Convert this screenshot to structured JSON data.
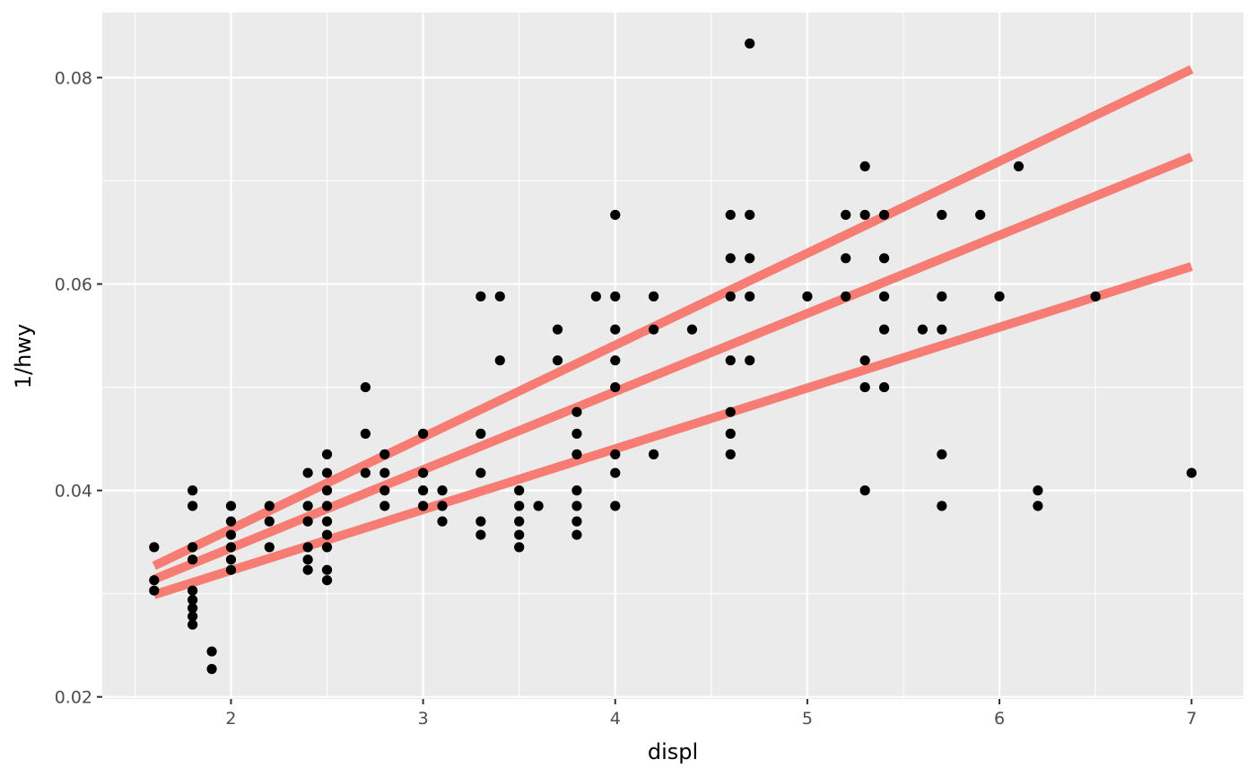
{
  "chart_data": {
    "type": "scatter",
    "title": "",
    "xlabel": "displ",
    "ylabel": "1/hwy",
    "xlim": [
      1.33,
      7.27
    ],
    "ylim": [
      0.0198,
      0.0863
    ],
    "x_ticks": [
      2,
      3,
      4,
      5,
      6,
      7
    ],
    "y_ticks": [
      0.02,
      0.04,
      0.06,
      0.08
    ],
    "x_tick_labels": [
      "2",
      "3",
      "4",
      "5",
      "6",
      "7"
    ],
    "y_tick_labels": [
      "0.02",
      "0.04",
      "0.06",
      "0.08"
    ],
    "grid": true,
    "legend": "none",
    "colors": {
      "panel": "#ebebeb",
      "grid": "#ffffff",
      "points": "#000000",
      "quantile_lines": "#f8766d"
    },
    "points": [
      [
        1.6,
        0.0345
      ],
      [
        1.6,
        0.0313
      ],
      [
        1.6,
        0.0303
      ],
      [
        1.8,
        0.04
      ],
      [
        1.8,
        0.0385
      ],
      [
        1.8,
        0.0345
      ],
      [
        1.8,
        0.0333
      ],
      [
        1.8,
        0.0303
      ],
      [
        1.8,
        0.0294
      ],
      [
        1.8,
        0.0286
      ],
      [
        1.8,
        0.0278
      ],
      [
        1.8,
        0.027
      ],
      [
        1.9,
        0.0244
      ],
      [
        1.9,
        0.0227
      ],
      [
        2.0,
        0.0385
      ],
      [
        2.0,
        0.037
      ],
      [
        2.0,
        0.0357
      ],
      [
        2.0,
        0.0345
      ],
      [
        2.0,
        0.0333
      ],
      [
        2.0,
        0.0323
      ],
      [
        2.2,
        0.0385
      ],
      [
        2.2,
        0.037
      ],
      [
        2.2,
        0.0345
      ],
      [
        2.4,
        0.0417
      ],
      [
        2.4,
        0.0385
      ],
      [
        2.4,
        0.037
      ],
      [
        2.4,
        0.0345
      ],
      [
        2.4,
        0.0333
      ],
      [
        2.4,
        0.0323
      ],
      [
        2.5,
        0.0435
      ],
      [
        2.5,
        0.0417
      ],
      [
        2.5,
        0.04
      ],
      [
        2.5,
        0.0385
      ],
      [
        2.5,
        0.037
      ],
      [
        2.5,
        0.0357
      ],
      [
        2.5,
        0.0345
      ],
      [
        2.5,
        0.0323
      ],
      [
        2.5,
        0.0313
      ],
      [
        2.7,
        0.05
      ],
      [
        2.7,
        0.0455
      ],
      [
        2.7,
        0.0417
      ],
      [
        2.8,
        0.0435
      ],
      [
        2.8,
        0.0417
      ],
      [
        2.8,
        0.04
      ],
      [
        2.8,
        0.0385
      ],
      [
        3.0,
        0.0455
      ],
      [
        3.0,
        0.0417
      ],
      [
        3.0,
        0.04
      ],
      [
        3.0,
        0.0385
      ],
      [
        3.1,
        0.04
      ],
      [
        3.1,
        0.0385
      ],
      [
        3.1,
        0.037
      ],
      [
        3.3,
        0.0588
      ],
      [
        3.3,
        0.0455
      ],
      [
        3.3,
        0.0417
      ],
      [
        3.3,
        0.037
      ],
      [
        3.3,
        0.0357
      ],
      [
        3.4,
        0.0588
      ],
      [
        3.4,
        0.0526
      ],
      [
        3.5,
        0.04
      ],
      [
        3.5,
        0.0385
      ],
      [
        3.5,
        0.037
      ],
      [
        3.5,
        0.0357
      ],
      [
        3.5,
        0.0345
      ],
      [
        3.6,
        0.0385
      ],
      [
        3.7,
        0.0556
      ],
      [
        3.7,
        0.0526
      ],
      [
        3.8,
        0.0476
      ],
      [
        3.8,
        0.0455
      ],
      [
        3.8,
        0.0435
      ],
      [
        3.8,
        0.04
      ],
      [
        3.8,
        0.0385
      ],
      [
        3.8,
        0.037
      ],
      [
        3.8,
        0.0357
      ],
      [
        3.9,
        0.0588
      ],
      [
        4.0,
        0.0667
      ],
      [
        4.0,
        0.0588
      ],
      [
        4.0,
        0.0556
      ],
      [
        4.0,
        0.0526
      ],
      [
        4.0,
        0.05
      ],
      [
        4.0,
        0.0435
      ],
      [
        4.0,
        0.0417
      ],
      [
        4.0,
        0.0385
      ],
      [
        4.2,
        0.0588
      ],
      [
        4.2,
        0.0556
      ],
      [
        4.2,
        0.0435
      ],
      [
        4.4,
        0.0556
      ],
      [
        4.6,
        0.0667
      ],
      [
        4.6,
        0.0625
      ],
      [
        4.6,
        0.0588
      ],
      [
        4.6,
        0.0526
      ],
      [
        4.6,
        0.0476
      ],
      [
        4.6,
        0.0455
      ],
      [
        4.6,
        0.0435
      ],
      [
        4.7,
        0.0833
      ],
      [
        4.7,
        0.0667
      ],
      [
        4.7,
        0.0625
      ],
      [
        4.7,
        0.0588
      ],
      [
        4.7,
        0.0526
      ],
      [
        5.0,
        0.0588
      ],
      [
        5.2,
        0.0667
      ],
      [
        5.2,
        0.0625
      ],
      [
        5.2,
        0.0588
      ],
      [
        5.3,
        0.0714
      ],
      [
        5.3,
        0.0667
      ],
      [
        5.3,
        0.0526
      ],
      [
        5.3,
        0.05
      ],
      [
        5.3,
        0.04
      ],
      [
        5.4,
        0.0667
      ],
      [
        5.4,
        0.0625
      ],
      [
        5.4,
        0.0588
      ],
      [
        5.4,
        0.0556
      ],
      [
        5.4,
        0.05
      ],
      [
        5.6,
        0.0556
      ],
      [
        5.7,
        0.0667
      ],
      [
        5.7,
        0.0588
      ],
      [
        5.7,
        0.0556
      ],
      [
        5.7,
        0.0435
      ],
      [
        5.7,
        0.0385
      ],
      [
        5.9,
        0.0667
      ],
      [
        6.0,
        0.0588
      ],
      [
        6.1,
        0.0714
      ],
      [
        6.2,
        0.04
      ],
      [
        6.2,
        0.0385
      ],
      [
        6.5,
        0.0588
      ],
      [
        7.0,
        0.0417
      ]
    ],
    "lines": [
      {
        "x": [
          1.6,
          7.0
        ],
        "y": [
          0.0327,
          0.0808
        ]
      },
      {
        "x": [
          1.6,
          7.0
        ],
        "y": [
          0.0314,
          0.0723
        ]
      },
      {
        "x": [
          1.6,
          7.0
        ],
        "y": [
          0.0299,
          0.0617
        ]
      }
    ]
  }
}
